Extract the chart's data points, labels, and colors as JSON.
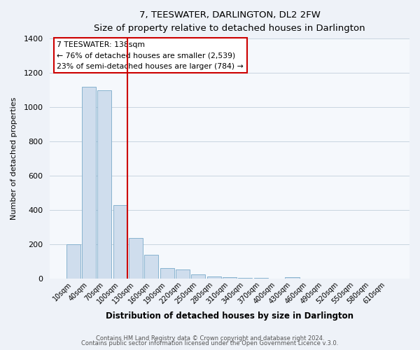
{
  "title": "7, TEESWATER, DARLINGTON, DL2 2FW",
  "subtitle": "Size of property relative to detached houses in Darlington",
  "xlabel": "Distribution of detached houses by size in Darlington",
  "ylabel": "Number of detached properties",
  "bar_labels": [
    "10sqm",
    "40sqm",
    "70sqm",
    "100sqm",
    "130sqm",
    "160sqm",
    "190sqm",
    "220sqm",
    "250sqm",
    "280sqm",
    "310sqm",
    "340sqm",
    "370sqm",
    "400sqm",
    "430sqm",
    "460sqm",
    "490sqm",
    "520sqm",
    "550sqm",
    "580sqm",
    "610sqm"
  ],
  "bar_values": [
    200,
    1120,
    1100,
    430,
    240,
    140,
    65,
    55,
    25,
    15,
    10,
    8,
    5,
    0,
    10,
    0,
    0,
    0,
    0,
    0,
    0
  ],
  "bar_color": "#cfdded",
  "bar_edge_color": "#7aaaca",
  "ylim": [
    0,
    1400
  ],
  "yticks": [
    0,
    200,
    400,
    600,
    800,
    1000,
    1200,
    1400
  ],
  "vline_x_idx": 3,
  "vline_color": "#cc0000",
  "annotation_title": "7 TEESWATER: 138sqm",
  "annotation_line1": "← 76% of detached houses are smaller (2,539)",
  "annotation_line2": "23% of semi-detached houses are larger (784) →",
  "annotation_box_color": "#ffffff",
  "annotation_box_edge_color": "#cc0000",
  "footer1": "Contains HM Land Registry data © Crown copyright and database right 2024.",
  "footer2": "Contains public sector information licensed under the Open Government Licence v.3.0.",
  "background_color": "#eef2f8",
  "plot_background_color": "#f5f8fc"
}
